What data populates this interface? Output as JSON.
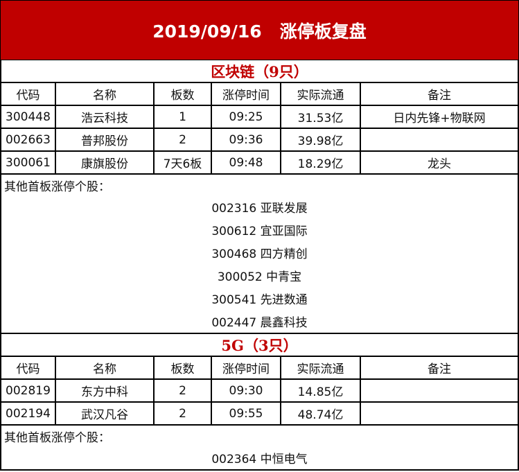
{
  "title": "2019/09/16   涨停板复盘",
  "columns": [
    "代码",
    "名称",
    "板数",
    "涨停时间",
    "实际流通",
    "备注"
  ],
  "sections": [
    {
      "heading": "区块链（9只）",
      "rows": [
        [
          "300448",
          "浩云科技",
          "1",
          "09:25",
          "31.53亿",
          "日内先锋+物联网"
        ],
        [
          "002663",
          "普邦股份",
          "2",
          "09:36",
          "39.98亿",
          ""
        ],
        [
          "300061",
          "康旗股份",
          "7天6板",
          "09:48",
          "18.29亿",
          "龙头"
        ]
      ],
      "other_label": "其他首板涨停个股：",
      "others": [
        "002316 亚联发展",
        "300612 宜亚国际",
        "300468 四方精创",
        "300052 中青宝",
        "300541 先进数通",
        "002447 晨鑫科技"
      ]
    },
    {
      "heading": "5G（3只）",
      "rows": [
        [
          "002819",
          "东方中科",
          "2",
          "09:30",
          "14.85亿",
          ""
        ],
        [
          "002194",
          "武汉凡谷",
          "2",
          "09:55",
          "48.74亿",
          ""
        ]
      ],
      "other_label": "其他首板涨停个股：",
      "others": [
        "002364 中恒电气"
      ]
    }
  ],
  "colors": {
    "title_bg": "#c00000",
    "heading_text": "#c00000"
  }
}
